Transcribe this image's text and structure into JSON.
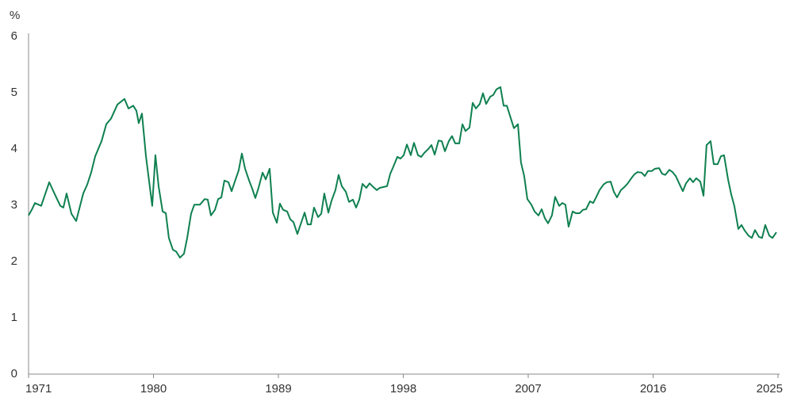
{
  "chart_data": {
    "type": "line",
    "y_label": "%",
    "x": [
      1971.0,
      1971.23,
      1971.46,
      1971.91,
      1972.49,
      1972.94,
      1973.29,
      1973.51,
      1973.74,
      1974.09,
      1974.43,
      1974.94,
      1975.23,
      1975.51,
      1975.8,
      1976.26,
      1976.6,
      1976.94,
      1977.4,
      1977.91,
      1978.2,
      1978.54,
      1978.77,
      1978.94,
      1979.17,
      1979.46,
      1979.91,
      1980.14,
      1980.37,
      1980.66,
      1980.89,
      1981.11,
      1981.4,
      1981.63,
      1981.91,
      1982.2,
      1982.43,
      1982.71,
      1982.94,
      1983.34,
      1983.69,
      1983.91,
      1984.14,
      1984.43,
      1984.66,
      1984.89,
      1985.11,
      1985.4,
      1985.63,
      1985.86,
      1986.14,
      1986.37,
      1986.6,
      1986.89,
      1987.11,
      1987.34,
      1987.57,
      1987.86,
      1988.09,
      1988.37,
      1988.6,
      1988.89,
      1989.11,
      1989.34,
      1989.63,
      1989.86,
      1990.09,
      1990.37,
      1990.6,
      1990.89,
      1991.11,
      1991.34,
      1991.57,
      1991.86,
      1992.09,
      1992.31,
      1992.6,
      1992.83,
      1993.11,
      1993.34,
      1993.57,
      1993.86,
      1994.09,
      1994.37,
      1994.6,
      1994.83,
      1995.06,
      1995.34,
      1995.57,
      1995.86,
      1996.09,
      1996.31,
      1996.83,
      1997.06,
      1997.29,
      1997.57,
      1997.8,
      1998.03,
      1998.26,
      1998.54,
      1998.77,
      1999.06,
      1999.29,
      1999.51,
      1999.8,
      2000.03,
      2000.26,
      2000.54,
      2000.77,
      2001.0,
      2001.28,
      2001.51,
      2001.74,
      2002.03,
      2002.26,
      2002.48,
      2002.77,
      2003.0,
      2003.23,
      2003.51,
      2003.74,
      2003.97,
      2004.26,
      2004.48,
      2004.71,
      2005.0,
      2005.23,
      2005.46,
      2005.74,
      2005.97,
      2006.26,
      2006.48,
      2006.71,
      2006.94,
      2007.23,
      2007.46,
      2007.74,
      2007.97,
      2008.2,
      2008.43,
      2008.71,
      2008.94,
      2009.23,
      2009.46,
      2009.68,
      2009.91,
      2010.2,
      2010.43,
      2010.71,
      2010.94,
      2011.17,
      2011.45,
      2011.68,
      2011.91,
      2012.14,
      2012.43,
      2012.66,
      2012.94,
      2013.17,
      2013.4,
      2013.68,
      2013.91,
      2014.14,
      2014.43,
      2014.65,
      2014.88,
      2015.17,
      2015.4,
      2015.63,
      2015.91,
      2016.14,
      2016.43,
      2016.65,
      2016.88,
      2017.17,
      2017.4,
      2017.63,
      2017.91,
      2018.14,
      2018.37,
      2018.65,
      2018.88,
      2019.11,
      2019.4,
      2019.63,
      2019.85,
      2020.14,
      2020.37,
      2020.65,
      2020.88,
      2021.11,
      2021.4,
      2021.62,
      2021.85,
      2022.14,
      2022.37,
      2022.6,
      2022.88,
      2023.11,
      2023.34,
      2023.62,
      2023.85,
      2024.08,
      2024.37,
      2024.6,
      2024.88
    ],
    "series": [
      {
        "color": "#0f8050",
        "values": [
          2.82,
          2.92,
          3.04,
          2.99,
          3.41,
          3.17,
          2.99,
          2.96,
          3.21,
          2.85,
          2.72,
          3.21,
          3.37,
          3.58,
          3.87,
          4.14,
          4.44,
          4.54,
          4.79,
          4.89,
          4.72,
          4.77,
          4.68,
          4.46,
          4.63,
          3.87,
          2.99,
          3.89,
          3.34,
          2.89,
          2.86,
          2.42,
          2.21,
          2.18,
          2.07,
          2.14,
          2.42,
          2.85,
          3.01,
          3.01,
          3.11,
          3.1,
          2.82,
          2.92,
          3.11,
          3.14,
          3.44,
          3.41,
          3.25,
          3.42,
          3.62,
          3.92,
          3.65,
          3.44,
          3.3,
          3.13,
          3.31,
          3.58,
          3.46,
          3.65,
          2.87,
          2.69,
          3.03,
          2.92,
          2.89,
          2.75,
          2.7,
          2.49,
          2.66,
          2.87,
          2.66,
          2.66,
          2.96,
          2.79,
          2.85,
          3.21,
          2.87,
          3.08,
          3.27,
          3.54,
          3.34,
          3.24,
          3.06,
          3.1,
          2.96,
          3.1,
          3.38,
          3.31,
          3.39,
          3.32,
          3.27,
          3.31,
          3.34,
          3.56,
          3.69,
          3.86,
          3.83,
          3.89,
          4.08,
          3.89,
          4.11,
          3.89,
          3.86,
          3.93,
          4.0,
          4.07,
          3.9,
          4.15,
          4.14,
          3.96,
          4.14,
          4.23,
          4.1,
          4.1,
          4.44,
          4.32,
          4.38,
          4.82,
          4.72,
          4.8,
          4.99,
          4.8,
          4.93,
          4.96,
          5.06,
          5.1,
          4.77,
          4.77,
          4.55,
          4.37,
          4.44,
          3.76,
          3.52,
          3.11,
          3.01,
          2.89,
          2.82,
          2.93,
          2.77,
          2.68,
          2.82,
          3.15,
          2.99,
          3.04,
          3.01,
          2.62,
          2.89,
          2.86,
          2.86,
          2.92,
          2.93,
          3.07,
          3.04,
          3.15,
          3.27,
          3.37,
          3.41,
          3.42,
          3.24,
          3.14,
          3.27,
          3.32,
          3.38,
          3.48,
          3.55,
          3.59,
          3.58,
          3.52,
          3.61,
          3.61,
          3.65,
          3.66,
          3.56,
          3.54,
          3.63,
          3.59,
          3.52,
          3.37,
          3.25,
          3.39,
          3.48,
          3.41,
          3.48,
          3.42,
          3.17,
          4.07,
          4.14,
          3.73,
          3.73,
          3.87,
          3.89,
          3.46,
          3.2,
          2.99,
          2.58,
          2.65,
          2.55,
          2.46,
          2.42,
          2.56,
          2.44,
          2.42,
          2.65,
          2.46,
          2.42,
          2.52
        ]
      }
    ],
    "xlim": [
      1971,
      2025
    ],
    "xticks": [
      1971,
      1980,
      1989,
      1998,
      2007,
      2016,
      2025
    ],
    "ylim": [
      0,
      6
    ],
    "yticks": [
      0,
      1,
      2,
      3,
      4,
      5,
      6
    ],
    "grid": false
  }
}
